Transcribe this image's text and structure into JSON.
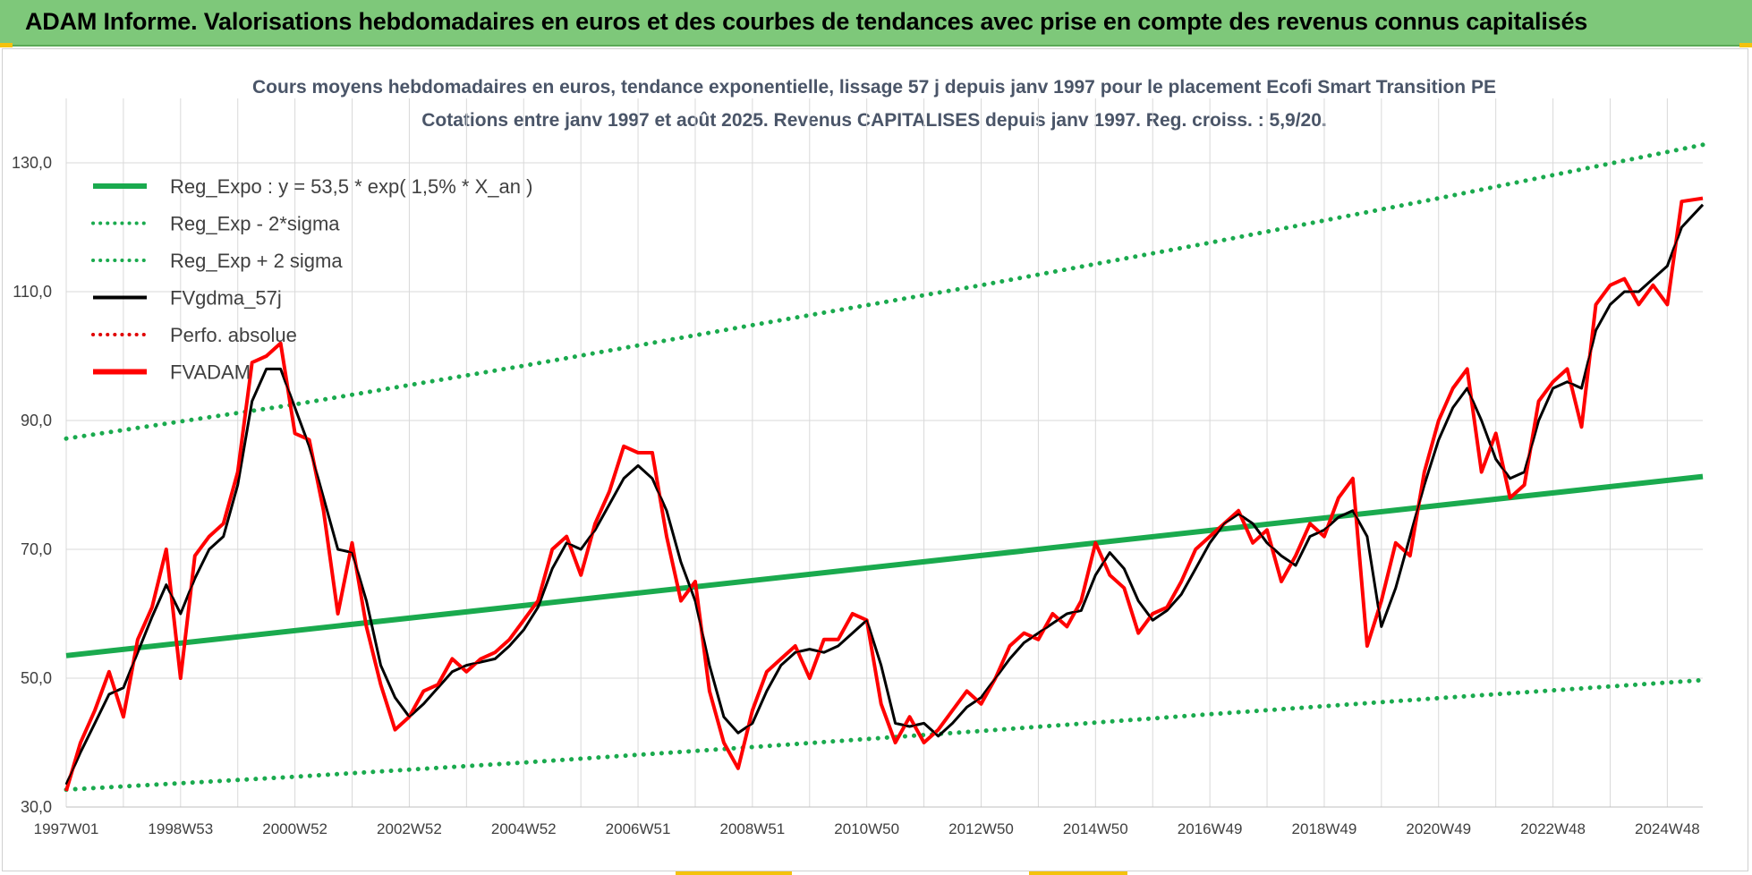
{
  "header": {
    "banner_title": "ADAM Informe. Valorisations hebdomadaires en euros et des courbes de tendances avec prise en compte des revenus connus capitalisés"
  },
  "colors": {
    "banner_bg": "#7ec87a",
    "reg_expo": "#1aaa4e",
    "fvgdma": "#000000",
    "perfo": "#e00000",
    "fvadam": "#ff0000"
  },
  "chart_data": {
    "type": "line",
    "title_line1": "Cours moyens hebdomadaires en euros, tendance exponentielle, lissage 57 j depuis janv 1997 pour le placement Ecofi Smart Transition PE",
    "title_line2": "Cotations entre janv 1997 et août 2025. Revenus CAPITALISES depuis janv 1997. Reg. croiss. : 5,9/20.",
    "xlabel": "",
    "ylabel": "",
    "ylim": [
      30,
      140
    ],
    "y_ticks": [
      "30,0",
      "50,0",
      "70,0",
      "90,0",
      "110,0",
      "130,0"
    ],
    "x_range_years": [
      1997.0,
      2025.62
    ],
    "x_ticks": [
      "1997W01",
      "1998W53",
      "2000W52",
      "2002W52",
      "2004W52",
      "2006W51",
      "2008W51",
      "2010W50",
      "2012W50",
      "2014W50",
      "2016W49",
      "2018W49",
      "2020W49",
      "2022W48",
      "2024W48"
    ],
    "grid": true,
    "legend_position": "top-left",
    "legend": [
      {
        "label": "Reg_Expo : y = 53,5 * exp( 1,5% *  X_an )",
        "style": "solid-thick",
        "color": "#1aaa4e"
      },
      {
        "label": "Reg_Exp - 2*sigma",
        "style": "dotted",
        "color": "#1aaa4e"
      },
      {
        "label": "Reg_Exp + 2 sigma",
        "style": "dotted",
        "color": "#1aaa4e"
      },
      {
        "label": "FVgdma_57j",
        "style": "solid",
        "color": "#000000"
      },
      {
        "label": "Perfo. absolue",
        "style": "dotted",
        "color": "#e00000"
      },
      {
        "label": "FVADAM",
        "style": "solid-thick",
        "color": "#ff0000"
      }
    ],
    "series": [
      {
        "name": "Reg_Expo : y = 53,5 * exp( 1,5% *  X_an )",
        "color": "#1aaa4e",
        "style": "solid-thick",
        "x": [
          1997.0,
          2025.62
        ],
        "values": [
          53.5,
          81.3
        ]
      },
      {
        "name": "Reg_Exp - 2*sigma",
        "color": "#1aaa4e",
        "style": "dotted",
        "x": [
          1997.0,
          2001.0,
          2005.0,
          2009.0,
          2013.0,
          2017.0,
          2021.0,
          2025.62
        ],
        "values": [
          32.7,
          34.7,
          36.9,
          39.3,
          41.8,
          44.4,
          46.9,
          49.7
        ]
      },
      {
        "name": "Reg_Exp + 2 sigma",
        "color": "#1aaa4e",
        "style": "dotted",
        "x": [
          1997.0,
          2001.0,
          2005.0,
          2009.0,
          2013.0,
          2017.0,
          2021.0,
          2025.62
        ],
        "values": [
          87.2,
          92.5,
          98.5,
          104.8,
          111.0,
          117.6,
          124.5,
          132.8
        ]
      },
      {
        "name": "FVgdma_57j",
        "color": "#000000",
        "style": "solid",
        "x": [
          1997.0,
          1997.25,
          1997.5,
          1997.75,
          1998.0,
          1998.25,
          1998.5,
          1998.75,
          1999.0,
          1999.25,
          1999.5,
          1999.75,
          2000.0,
          2000.25,
          2000.5,
          2000.75,
          2001.0,
          2001.25,
          2001.5,
          2001.75,
          2002.0,
          2002.25,
          2002.5,
          2002.75,
          2003.0,
          2003.25,
          2003.5,
          2003.75,
          2004.0,
          2004.25,
          2004.5,
          2004.75,
          2005.0,
          2005.25,
          2005.5,
          2005.75,
          2006.0,
          2006.25,
          2006.5,
          2006.75,
          2007.0,
          2007.25,
          2007.5,
          2007.75,
          2008.0,
          2008.25,
          2008.5,
          2008.75,
          2009.0,
          2009.25,
          2009.5,
          2009.75,
          2010.0,
          2010.25,
          2010.5,
          2010.75,
          2011.0,
          2011.25,
          2011.5,
          2011.75,
          2012.0,
          2012.25,
          2012.5,
          2012.75,
          2013.0,
          2013.25,
          2013.5,
          2013.75,
          2014.0,
          2014.25,
          2014.5,
          2014.75,
          2015.0,
          2015.25,
          2015.5,
          2015.75,
          2016.0,
          2016.25,
          2016.5,
          2016.75,
          2017.0,
          2017.25,
          2017.5,
          2017.75,
          2018.0,
          2018.25,
          2018.5,
          2018.75,
          2019.0,
          2019.25,
          2019.5,
          2019.75,
          2020.0,
          2020.25,
          2020.5,
          2020.75,
          2021.0,
          2021.25,
          2021.5,
          2021.75,
          2022.0,
          2022.25,
          2022.5,
          2022.75,
          2023.0,
          2023.25,
          2023.5,
          2023.75,
          2024.0,
          2024.25,
          2024.5,
          2024.75,
          2025.0,
          2025.25,
          2025.62
        ],
        "values": [
          33.5,
          38.5,
          43.0,
          47.5,
          48.5,
          54.0,
          59.5,
          64.5,
          60.0,
          65.5,
          70.0,
          72.0,
          80.0,
          93.0,
          98.0,
          98.0,
          92.0,
          86.0,
          78.0,
          70.0,
          69.5,
          62.0,
          52.0,
          47.0,
          44.0,
          46.0,
          48.5,
          51.0,
          52.0,
          52.5,
          53.0,
          55.0,
          57.5,
          61.0,
          67.0,
          71.0,
          70.0,
          73.0,
          77.0,
          81.0,
          83.0,
          81.0,
          76.0,
          68.0,
          62.0,
          52.0,
          44.0,
          41.5,
          43.0,
          48.0,
          52.0,
          54.0,
          54.5,
          54.0,
          55.0,
          57.0,
          59.0,
          52.0,
          43.0,
          42.5,
          43.0,
          41.0,
          43.0,
          45.5,
          47.0,
          50.0,
          53.0,
          55.5,
          57.0,
          58.5,
          60.0,
          60.5,
          66.0,
          69.5,
          67.0,
          62.0,
          59.0,
          60.5,
          63.0,
          67.0,
          71.0,
          74.0,
          75.5,
          74.0,
          71.0,
          69.0,
          67.5,
          72.0,
          73.0,
          75.0,
          76.0,
          72.0,
          58.0,
          64.0,
          72.0,
          80.0,
          87.0,
          92.0,
          95.0,
          90.0,
          84.0,
          81.0,
          82.0,
          90.0,
          95.0,
          96.0,
          95.0,
          104.0,
          108.0,
          110.0,
          110.0,
          112.0,
          114.0,
          120.0,
          123.5
        ]
      },
      {
        "name": "FVADAM",
        "color": "#ff0000",
        "style": "solid-thick",
        "x": [
          1997.0,
          1997.25,
          1997.5,
          1997.75,
          1998.0,
          1998.25,
          1998.5,
          1998.75,
          1999.0,
          1999.25,
          1999.5,
          1999.75,
          2000.0,
          2000.25,
          2000.5,
          2000.75,
          2001.0,
          2001.25,
          2001.5,
          2001.75,
          2002.0,
          2002.25,
          2002.5,
          2002.75,
          2003.0,
          2003.25,
          2003.5,
          2003.75,
          2004.0,
          2004.25,
          2004.5,
          2004.75,
          2005.0,
          2005.25,
          2005.5,
          2005.75,
          2006.0,
          2006.25,
          2006.5,
          2006.75,
          2007.0,
          2007.25,
          2007.5,
          2007.75,
          2008.0,
          2008.25,
          2008.5,
          2008.75,
          2009.0,
          2009.25,
          2009.5,
          2009.75,
          2010.0,
          2010.25,
          2010.5,
          2010.75,
          2011.0,
          2011.25,
          2011.5,
          2011.75,
          2012.0,
          2012.25,
          2012.5,
          2012.75,
          2013.0,
          2013.25,
          2013.5,
          2013.75,
          2014.0,
          2014.25,
          2014.5,
          2014.75,
          2015.0,
          2015.25,
          2015.5,
          2015.75,
          2016.0,
          2016.25,
          2016.5,
          2016.75,
          2017.0,
          2017.25,
          2017.5,
          2017.75,
          2018.0,
          2018.25,
          2018.5,
          2018.75,
          2019.0,
          2019.25,
          2019.5,
          2019.75,
          2020.0,
          2020.25,
          2020.5,
          2020.75,
          2021.0,
          2021.25,
          2021.5,
          2021.75,
          2022.0,
          2022.25,
          2022.5,
          2022.75,
          2023.0,
          2023.25,
          2023.5,
          2023.75,
          2024.0,
          2024.25,
          2024.5,
          2024.75,
          2025.0,
          2025.25,
          2025.62
        ],
        "values": [
          32.5,
          40.0,
          45.0,
          51.0,
          44.0,
          56.0,
          61.0,
          70.0,
          50.0,
          69.0,
          72.0,
          74.0,
          82.0,
          99.0,
          100.0,
          102.0,
          88.0,
          87.0,
          76.0,
          60.0,
          71.0,
          58.0,
          49.0,
          42.0,
          44.0,
          48.0,
          49.0,
          53.0,
          51.0,
          53.0,
          54.0,
          56.0,
          59.0,
          62.0,
          70.0,
          72.0,
          66.0,
          74.0,
          79.0,
          86.0,
          85.0,
          85.0,
          72.0,
          62.0,
          65.0,
          48.0,
          40.0,
          36.0,
          45.0,
          51.0,
          53.0,
          55.0,
          50.0,
          56.0,
          56.0,
          60.0,
          59.0,
          46.0,
          40.0,
          44.0,
          40.0,
          42.0,
          45.0,
          48.0,
          46.0,
          50.0,
          55.0,
          57.0,
          56.0,
          60.0,
          58.0,
          62.0,
          71.0,
          66.0,
          64.0,
          57.0,
          60.0,
          61.0,
          65.0,
          70.0,
          72.0,
          74.0,
          76.0,
          71.0,
          73.0,
          65.0,
          69.0,
          74.0,
          72.0,
          78.0,
          81.0,
          55.0,
          62.0,
          71.0,
          69.0,
          82.0,
          90.0,
          95.0,
          98.0,
          82.0,
          88.0,
          78.0,
          80.0,
          93.0,
          96.0,
          98.0,
          89.0,
          108.0,
          111.0,
          112.0,
          108.0,
          111.0,
          108.0,
          124.0,
          124.5
        ]
      }
    ]
  }
}
